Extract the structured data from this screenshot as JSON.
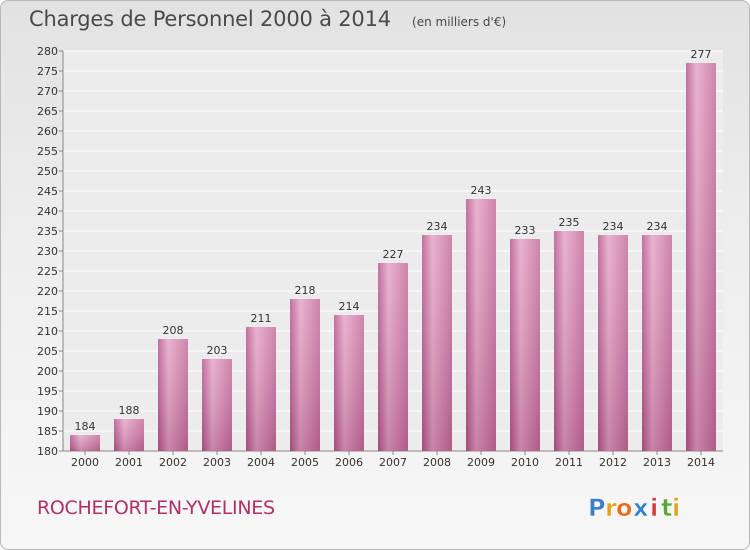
{
  "chart_data": {
    "type": "bar",
    "title": "Charges de Personnel 2000 à 2014",
    "subtitle": "(en milliers d'€)",
    "categories": [
      "2000",
      "2001",
      "2002",
      "2003",
      "2004",
      "2005",
      "2006",
      "2007",
      "2008",
      "2009",
      "2010",
      "2011",
      "2012",
      "2013",
      "2014"
    ],
    "values": [
      184,
      188,
      208,
      203,
      211,
      218,
      214,
      227,
      234,
      243,
      233,
      235,
      234,
      234,
      277
    ],
    "ylim": [
      180,
      280
    ],
    "yticks": [
      180,
      185,
      190,
      195,
      200,
      205,
      210,
      215,
      220,
      225,
      230,
      235,
      240,
      245,
      250,
      255,
      260,
      265,
      270,
      275,
      280
    ],
    "grid": true,
    "bar_color": "#d27aa8",
    "data_labels": true
  },
  "footer": {
    "commune": "ROCHEFORT-EN-YVELINES",
    "logo_letters": [
      "P",
      "r",
      "o",
      "x",
      "i",
      "t",
      "i"
    ],
    "logo_colors": [
      "#3a7fc8",
      "#e4a21c",
      "#e86c1c",
      "#3a7fc8",
      "#d63a3a",
      "#5aa83a",
      "#e4a21c"
    ]
  }
}
